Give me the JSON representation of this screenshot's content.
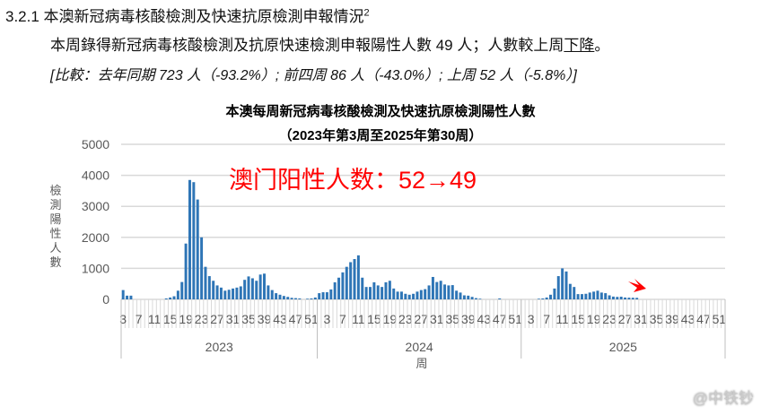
{
  "section": {
    "number": "3.2.1",
    "title": "本澳新冠病毒核酸檢測及快速抗原檢測申報情況",
    "footnote": "2",
    "summary_prefix": "本周錄得新冠病毒核酸檢測及抗原快速檢測申報陽性人數 49 人；人數較上周",
    "summary_underlined": "下降",
    "summary_suffix": "。",
    "comparison": "[比較：去年同期 723 人（-93.2%）; 前四周 86 人（-43.0%）; 上周 52 人（-5.8%）]"
  },
  "annotation": {
    "text": "澳门阳性人数：52→49",
    "color": "#ff0000"
  },
  "watermark": "@中铁钞",
  "chart_data": {
    "type": "bar",
    "title": "本澳每周新冠病毒核酸檢測及快速抗原檢測陽性人數",
    "subtitle": "（2023年第3周至2025年第30周）",
    "xlabel": "周",
    "ylabel": "檢測陽性人數",
    "ylim": [
      0,
      5000
    ],
    "yticks": [
      0,
      1000,
      2000,
      3000,
      4000,
      5000
    ],
    "grid": true,
    "bar_color": "#2e75b6",
    "years": [
      {
        "year": "2023",
        "start_week": 3,
        "end_week": 52,
        "values": [
          300,
          120,
          120,
          0,
          0,
          0,
          0,
          0,
          0,
          0,
          0,
          30,
          60,
          100,
          280,
          560,
          1800,
          3850,
          3780,
          3220,
          2000,
          1050,
          750,
          600,
          450,
          380,
          280,
          310,
          350,
          380,
          420,
          630,
          740,
          680,
          600,
          800,
          830,
          450,
          300,
          200,
          150,
          110,
          80,
          50,
          40,
          30,
          0,
          20,
          30,
          60
        ]
      },
      {
        "year": "2024",
        "start_week": 1,
        "end_week": 52,
        "values": [
          200,
          230,
          230,
          320,
          550,
          700,
          870,
          1050,
          1200,
          1300,
          1420,
          700,
          400,
          400,
          550,
          450,
          400,
          550,
          600,
          350,
          250,
          250,
          180,
          150,
          180,
          250,
          300,
          330,
          450,
          723,
          560,
          600,
          480,
          450,
          460,
          280,
          220,
          130,
          120,
          80,
          40,
          20,
          0,
          0,
          0,
          0,
          30,
          0,
          0,
          0,
          0,
          0
        ]
      },
      {
        "year": "2025",
        "start_week": 1,
        "end_week": 30,
        "values": [
          0,
          0,
          0,
          0,
          20,
          30,
          60,
          150,
          350,
          750,
          1000,
          900,
          500,
          400,
          170,
          170,
          180,
          220,
          250,
          280,
          220,
          200,
          130,
          90,
          80,
          86,
          60,
          55,
          52,
          49
        ]
      }
    ],
    "week_tick_labels": [
      3,
      7,
      11,
      15,
      19,
      23,
      27,
      31,
      35,
      39,
      43,
      47,
      51
    ]
  }
}
